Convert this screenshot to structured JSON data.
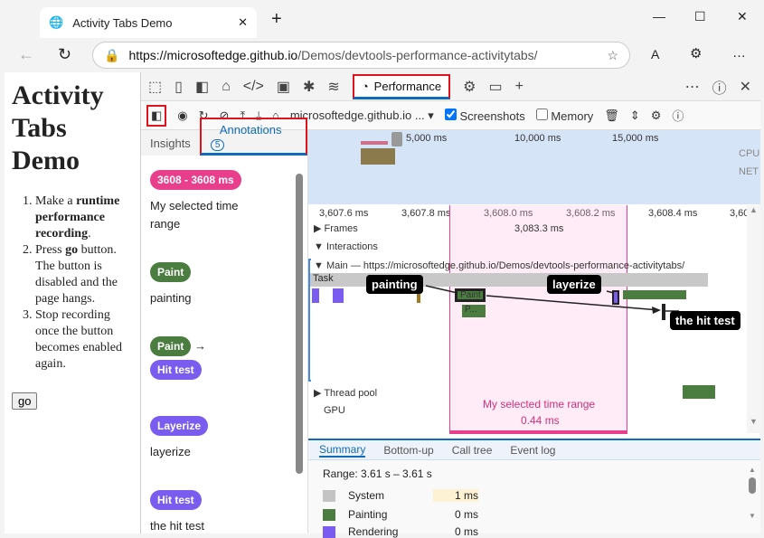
{
  "browser": {
    "tab_title": "Activity Tabs Demo",
    "url_host": "https://microsoftedge.github.io",
    "url_path": "/Demos/devtools-performance-activitytabs/"
  },
  "page": {
    "title": "Activity Tabs Demo",
    "steps": [
      [
        "Make a ",
        "runtime performance recording",
        "."
      ],
      [
        "Press ",
        "go",
        " button. The button is disabled and the page hangs."
      ],
      [
        "Stop recording once the button becomes enabled again.",
        "",
        ""
      ]
    ],
    "go_label": "go"
  },
  "devtools": {
    "performance_tab": "Performance",
    "origin_select": "microsoftedge.github.io ...",
    "screenshots_label": "Screenshots",
    "screenshots_checked": true,
    "memory_label": "Memory",
    "memory_checked": false
  },
  "sidebar": {
    "tabs": [
      "Insights",
      "Annotations"
    ],
    "annotation_count": "5",
    "annotations": [
      {
        "chip": "3608 - 3608 ms",
        "color": "#e83e8c",
        "text": "My selected time range"
      },
      {
        "chip": "Paint",
        "color": "#4a7d3f",
        "text": "painting"
      },
      {
        "chip": "Paint",
        "chip2": "Hit test",
        "color": "#4a7d3f",
        "color2": "#7b5cf0",
        "arrow": "→"
      },
      {
        "chip": "Layerize",
        "color": "#7b5cf0",
        "text": "layerize"
      },
      {
        "chip": "Hit test",
        "color": "#7b5cf0",
        "text": "the hit test"
      }
    ]
  },
  "overview": {
    "ticks": [
      "5,000 ms",
      "10,000 ms",
      "15,000 ms"
    ],
    "cpu": "CPU",
    "net": "NET"
  },
  "timeline": {
    "ticks": [
      "3,607.6 ms",
      "3,607.8 ms",
      "3,608.0 ms",
      "3,608.2 ms",
      "3,608.4 ms",
      "3,60"
    ],
    "frames": "Frames",
    "frame_time": "3,083.3 ms",
    "interactions": "Interactions",
    "main": "Main — https://microsoftedge.github.io/Demos/devtools-performance-activitytabs/",
    "task": "Task",
    "paint": "Paint",
    "p_short": "P...",
    "thread_pool": "Thread pool",
    "gpu": "GPU",
    "range_label": "My selected time range",
    "range_duration": "0.44 ms",
    "flags": {
      "painting": "painting",
      "layerize": "layerize",
      "hit": "the hit test"
    }
  },
  "summary": {
    "tabs": [
      "Summary",
      "Bottom-up",
      "Call tree",
      "Event log"
    ],
    "range": "Range: 3.61 s – 3.61 s",
    "rows": [
      {
        "name": "System",
        "value": "1 ms",
        "color": "#c4c4c4"
      },
      {
        "name": "Painting",
        "value": "0 ms",
        "color": "#4a7d3f"
      },
      {
        "name": "Rendering",
        "value": "0 ms",
        "color": "#7b5cf0"
      }
    ]
  }
}
